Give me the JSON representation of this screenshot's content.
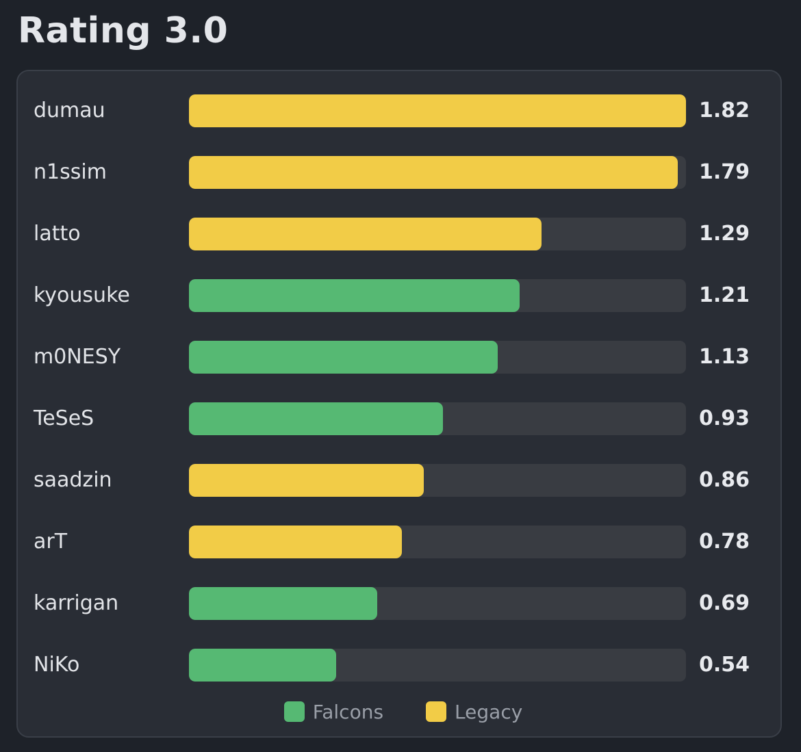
{
  "title": "Rating 3.0",
  "colors": {
    "Falcons": "#56b973",
    "Legacy": "#f2cc47",
    "track": "#393c42"
  },
  "chart_data": {
    "type": "bar",
    "orientation": "horizontal",
    "title": "Rating 3.0",
    "categories": [
      "dumau",
      "n1ssim",
      "latto",
      "kyousuke",
      "m0NESY",
      "TeSeS",
      "saadzin",
      "arT",
      "karrigan",
      "NiKo"
    ],
    "values": [
      1.82,
      1.79,
      1.29,
      1.21,
      1.13,
      0.93,
      0.86,
      0.78,
      0.69,
      0.54
    ],
    "labels": [
      "1.82",
      "1.79",
      "1.29",
      "1.21",
      "1.13",
      "0.93",
      "0.86",
      "0.78",
      "0.69",
      "0.54"
    ],
    "teams": [
      "Legacy",
      "Legacy",
      "Legacy",
      "Falcons",
      "Falcons",
      "Falcons",
      "Legacy",
      "Legacy",
      "Falcons",
      "Falcons"
    ],
    "xlim": [
      0,
      1.82
    ],
    "grid": false,
    "legend": {
      "position": "bottom-center",
      "items": [
        {
          "name": "Falcons",
          "color": "#56b973"
        },
        {
          "name": "Legacy",
          "color": "#f2cc47"
        }
      ]
    }
  }
}
